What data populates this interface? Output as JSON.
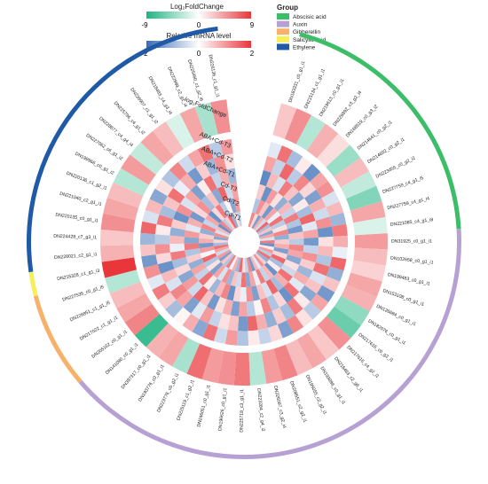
{
  "chart_data": {
    "type": "heatmap",
    "title": "",
    "legend_fc": {
      "title": "Log₂FoldChange",
      "min": -9,
      "mid": 0,
      "max": 9,
      "min_label": "-9",
      "mid_label": "0",
      "max_label": "9",
      "colors": [
        "#1fb482",
        "#ffffff",
        "#e8363a"
      ]
    },
    "legend_mrna": {
      "title": "Relative mRNA level",
      "min": -2,
      "mid": 0,
      "max": 2,
      "min_label": "-2",
      "mid_label": "0",
      "max_label": "2",
      "colors": [
        "#3a6db5",
        "#ffffff",
        "#e8363a"
      ]
    },
    "legend_group": {
      "title": "Group",
      "items": [
        {
          "name": "Abscisic acid",
          "color": "#3cbd68"
        },
        {
          "name": "Auxin",
          "color": "#b7a1d4"
        },
        {
          "name": "Gibberellin",
          "color": "#f6b26b"
        },
        {
          "name": "Salicylic acid",
          "color": "#f5ef5a"
        },
        {
          "name": "Ethylene",
          "color": "#1f5aa6"
        }
      ]
    },
    "track_labels": [
      "log₂FoldChange",
      "ABA+Cd-T3",
      "ABA+Cd-T2",
      "ABA+Cd-T1",
      "Cd-T3",
      "Cd-T2",
      "Cd-T1"
    ],
    "genes": [
      {
        "id": "DN183331_c0_g1_i1",
        "group": "Abscisic acid",
        "fc": 2.5
      },
      {
        "id": "DN215134_c1_g1_i1",
        "group": "Abscisic acid",
        "fc": 5.0
      },
      {
        "id": "DN219613_c0_g1_i1",
        "group": "Abscisic acid",
        "fc": -3.0
      },
      {
        "id": "DN226892_c3_g2_i4",
        "group": "Abscisic acid",
        "fc": 3.5
      },
      {
        "id": "DN168519_c0_g3_i2",
        "group": "Abscisic acid",
        "fc": 1.5
      },
      {
        "id": "DN214641_c0_g2_i1",
        "group": "Abscisic acid",
        "fc": -4.0
      },
      {
        "id": "DN214602_c0_g2_i1",
        "group": "Abscisic acid",
        "fc": 3.0
      },
      {
        "id": "DN223455_c0_g2_i2",
        "group": "Abscisic acid",
        "fc": -2.5
      },
      {
        "id": "DN227759_c4_g1_i5",
        "group": "Abscisic acid",
        "fc": -5.0
      },
      {
        "id": "DN227759_c4_g1_i4",
        "group": "Abscisic acid",
        "fc": 4.0
      },
      {
        "id": "DN221085_c4_g1_i8",
        "group": "Abscisic acid",
        "fc": -1.5
      },
      {
        "id": "DN31925_c0_g1_i1",
        "group": "Auxin",
        "fc": 4.5
      },
      {
        "id": "DN102658_c0_g1_i1",
        "group": "Auxin",
        "fc": 3.0
      },
      {
        "id": "DN199483_c0_g1_i1",
        "group": "Auxin",
        "fc": 2.0
      },
      {
        "id": "DN153108_c0_g1_i1",
        "group": "Auxin",
        "fc": 4.0
      },
      {
        "id": "DN126684_c0_g1_i1",
        "group": "Auxin",
        "fc": 3.5
      },
      {
        "id": "DN182076_c0_g1_i1",
        "group": "Auxin",
        "fc": -4.5
      },
      {
        "id": "DN217616_c0_g2_i1",
        "group": "Auxin",
        "fc": -6.0
      },
      {
        "id": "DN217616_c4_g2_i1",
        "group": "Auxin",
        "fc": 5.0
      },
      {
        "id": "DN216463_c2_g6_i1",
        "group": "Auxin",
        "fc": 2.5
      },
      {
        "id": "DN193896_c0_g1_i1",
        "group": "Auxin",
        "fc": 4.0
      },
      {
        "id": "DN195055_c2_g2_i1",
        "group": "Auxin",
        "fc": 3.0
      },
      {
        "id": "DN208551_c2_g2_i1",
        "group": "Auxin",
        "fc": 5.5
      },
      {
        "id": "DN226097_c3_g2_i4",
        "group": "Auxin",
        "fc": 4.5
      },
      {
        "id": "DN223284_c2_g4_i2",
        "group": "Auxin",
        "fc": -3.0
      },
      {
        "id": "DN225718_c3_g1_i1",
        "group": "Auxin",
        "fc": 6.0
      },
      {
        "id": "DN196626_c0_g1_i1",
        "group": "Auxin",
        "fc": 5.0
      },
      {
        "id": "DN246051_c0_g1_i1",
        "group": "Auxin",
        "fc": 4.5
      },
      {
        "id": "DN225119_c1_g2_i1",
        "group": "Auxin",
        "fc": 6.5
      },
      {
        "id": "DN223776_c0_g2_i1",
        "group": "Auxin",
        "fc": -3.5
      },
      {
        "id": "DN193776_c0_g1_i1",
        "group": "Auxin",
        "fc": 4.0
      },
      {
        "id": "DN397317_c0_g1_i1",
        "group": "Auxin",
        "fc": 3.5
      },
      {
        "id": "DN141090_c0_g1_i1",
        "group": "Auxin",
        "fc": -8.0
      },
      {
        "id": "DN205162_c0_g1_i1",
        "group": "Gibberellin",
        "fc": 5.5
      },
      {
        "id": "DN217022_c1_g1_i1",
        "group": "Gibberellin",
        "fc": 4.0
      },
      {
        "id": "DN226851_c1_g1_i5",
        "group": "Gibberellin",
        "fc": 3.0
      },
      {
        "id": "DN227535_c0_g1_i5",
        "group": "Gibberellin",
        "fc": -3.0
      },
      {
        "id": "DN215328_c1_g1_i3",
        "group": "Salicylic acid",
        "fc": 9.0
      },
      {
        "id": "DN228021_c2_g1_i1",
        "group": "Ethylene",
        "fc": 3.5
      },
      {
        "id": "DN224428_c7_g3_i1",
        "group": "Ethylene",
        "fc": 2.5
      },
      {
        "id": "DN220135_c0_g1_i1",
        "group": "Ethylene",
        "fc": 5.0
      },
      {
        "id": "DN221040_c2_g1_i1",
        "group": "Ethylene",
        "fc": 4.0
      },
      {
        "id": "DN220136_c1_g2_i1",
        "group": "Ethylene",
        "fc": 3.0
      },
      {
        "id": "DN199966_c0_g1_i2",
        "group": "Ethylene",
        "fc": -3.0
      },
      {
        "id": "DN227062_c6_g1_i2",
        "group": "Ethylene",
        "fc": 4.5
      },
      {
        "id": "DN228877_c4_g4_i4",
        "group": "Ethylene",
        "fc": -2.5
      },
      {
        "id": "DN225796_c4_g1_i2",
        "group": "Ethylene",
        "fc": 4.0
      },
      {
        "id": "DN226907_c1_g1_i2",
        "group": "Ethylene",
        "fc": 3.0
      },
      {
        "id": "DN218483_c4_g3_i4",
        "group": "Ethylene",
        "fc": -1.5
      },
      {
        "id": "DN222999_c2_g1_i4",
        "group": "Ethylene",
        "fc": 4.0
      },
      {
        "id": "DN225460_c1_g2_i6",
        "group": "Ethylene",
        "fc": -3.5
      },
      {
        "id": "DN226136_c1_g1_i1",
        "group": "Ethylene",
        "fc": 5.0
      }
    ],
    "mrna": [
      [
        1.2,
        -0.8,
        0.5,
        -1.6,
        0.9,
        -0.3
      ],
      [
        0.4,
        1.1,
        -1.5,
        0.7,
        -0.6,
        1.4
      ],
      [
        -1.3,
        0.6,
        1.0,
        -0.4,
        1.5,
        -0.9
      ],
      [
        0.8,
        -1.4,
        0.3,
        1.3,
        -0.7,
        0.2
      ],
      [
        -0.5,
        0.9,
        -1.1,
        0.6,
        1.2,
        -1.5
      ],
      [
        1.5,
        -0.2,
        0.7,
        -1.2,
        0.4,
        0.9
      ],
      [
        -0.9,
        1.4,
        -0.6,
        0.2,
        -1.3,
        1.1
      ],
      [
        0.6,
        -0.7,
        1.3,
        -0.9,
        0.8,
        -0.4
      ],
      [
        -1.2,
        0.3,
        -0.8,
        1.5,
        -0.5,
        0.7
      ],
      [
        0.9,
        1.2,
        -1.4,
        -0.3,
        1.1,
        -1.0
      ],
      [
        -0.4,
        -1.1,
        0.6,
        0.9,
        -1.5,
        1.3
      ],
      [
        1.3,
        0.5,
        -0.7,
        -1.4,
        0.3,
        0.8
      ],
      [
        -1.5,
        0.8,
        1.2,
        -0.6,
        0.7,
        -0.2
      ],
      [
        0.2,
        -1.3,
        0.9,
        1.1,
        -0.8,
        1.5
      ],
      [
        1.0,
        0.4,
        -1.2,
        0.5,
        1.4,
        -1.1
      ],
      [
        -0.7,
        1.5,
        0.3,
        -1.0,
        -0.4,
        0.6
      ],
      [
        1.4,
        -0.9,
        -0.5,
        0.8,
        0.6,
        -1.4
      ],
      [
        -1.1,
        0.2,
        1.4,
        -0.3,
        -1.2,
        0.9
      ],
      [
        0.5,
        -1.5,
        0.8,
        1.4,
        0.2,
        -0.7
      ],
      [
        1.1,
        0.7,
        -0.9,
        -1.5,
        1.3,
        0.3
      ],
      [
        -0.3,
        -0.6,
        1.5,
        0.4,
        -0.9,
        1.2
      ],
      [
        0.7,
        1.3,
        -0.4,
        -0.8,
        0.5,
        -1.3
      ],
      [
        -1.4,
        -0.2,
        0.6,
        1.2,
        -1.1,
        0.4
      ],
      [
        1.2,
        0.9,
        -1.3,
        0.1,
        0.8,
        -0.6
      ],
      [
        -0.6,
        -1.2,
        1.1,
        -0.7,
        1.5,
        0.2
      ],
      [
        0.3,
        1.4,
        -0.2,
        0.9,
        -1.4,
        -0.8
      ],
      [
        1.5,
        -0.5,
        0.4,
        -1.3,
        0.6,
        1.0
      ],
      [
        -1.0,
        0.6,
        -1.5,
        0.8,
        0.3,
        -0.5
      ],
      [
        0.8,
        -1.0,
        1.2,
        0.3,
        -0.6,
        1.4
      ],
      [
        -0.2,
        1.1,
        0.7,
        -1.4,
        1.0,
        -1.2
      ],
      [
        1.3,
        -0.4,
        -1.0,
        0.6,
        -0.3,
        0.8
      ],
      [
        -0.8,
        0.9,
        0.2,
        1.5,
        -1.3,
        0.1
      ],
      [
        0.6,
        -1.3,
        1.4,
        -0.5,
        0.9,
        -0.9
      ],
      [
        -1.3,
        0.3,
        -0.6,
        1.0,
        1.2,
        0.5
      ],
      [
        1.0,
        -0.8,
        0.9,
        -1.2,
        -0.4,
        1.3
      ],
      [
        -0.5,
        1.5,
        -1.1,
        0.4,
        0.7,
        -0.3
      ],
      [
        0.9,
        -0.1,
        0.5,
        -0.9,
        -1.5,
        1.1
      ],
      [
        1.4,
        1.0,
        -0.8,
        1.3,
        0.4,
        -1.4
      ],
      [
        -0.9,
        -1.4,
        1.3,
        -0.2,
        1.1,
        0.6
      ],
      [
        0.4,
        0.8,
        -1.2,
        0.7,
        -0.7,
        -1.0
      ],
      [
        -1.2,
        0.5,
        1.0,
        -1.1,
        0.2,
        1.5
      ],
      [
        1.1,
        -1.1,
        -0.3,
        0.5,
        1.3,
        -0.4
      ],
      [
        -0.4,
        1.2,
        0.8,
        -1.5,
        -0.9,
        0.7
      ],
      [
        0.7,
        -0.6,
        -1.4,
        1.1,
        0.6,
        -1.2
      ],
      [
        -1.5,
        0.9,
        0.4,
        -0.4,
        1.4,
        0.3
      ],
      [
        1.2,
        -1.5,
        1.1,
        0.9,
        -0.2,
        -0.8
      ],
      [
        -0.7,
        0.4,
        -0.9,
        -1.3,
        0.8,
        1.2
      ],
      [
        0.5,
        1.3,
        0.6,
        0.2,
        -1.4,
        -0.5
      ],
      [
        1.5,
        -0.7,
        -1.2,
        1.4,
        0.5,
        0.9
      ],
      [
        -1.1,
        0.1,
        1.5,
        -0.6,
        -1.0,
        1.4
      ],
      [
        0.3,
        -1.2,
        -0.5,
        0.8,
        1.1,
        -0.7
      ],
      [
        -0.6,
        1.0,
        0.9,
        -1.0,
        0.3,
        1.0
      ]
    ]
  }
}
